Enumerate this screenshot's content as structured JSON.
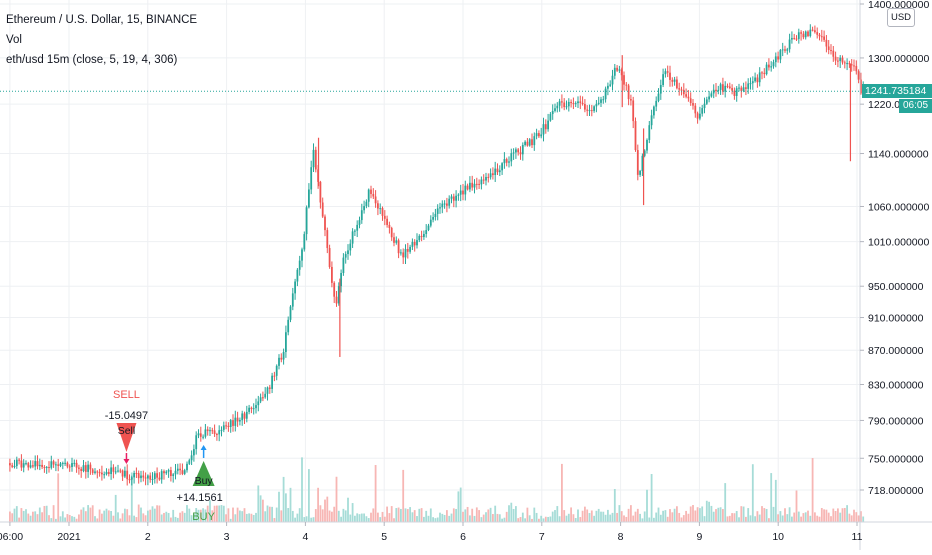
{
  "legend": {
    "symbol_line": "Ethereum / U.S. Dollar, 15, BINANCE",
    "volume_line": "Vol",
    "indicator_line": "eth/usd 15m (close, 5, 19, 4, 306)"
  },
  "currency_button": "USD",
  "price_badge": "1241.735184",
  "time_badge": "06:05",
  "colors": {
    "up": "#26a69a",
    "down": "#ef5350",
    "vol_up": "#a6dcd7",
    "vol_down": "#f7b6b4",
    "grid": "#eef0f3",
    "sell": "#ef5350",
    "buy": "#43a047",
    "price_line": "#26a69a"
  },
  "signals": {
    "sell": {
      "label": "SELL",
      "value": "-15.0497",
      "tag": "Sell"
    },
    "buy": {
      "label": "BUY",
      "value": "+14.1561",
      "tag": "Buy"
    }
  },
  "chart_data": {
    "type": "candlestick",
    "title": "Ethereum / U.S. Dollar, 15, BINANCE",
    "x_ticks": [
      "06:00",
      "2021",
      "2",
      "3",
      "4",
      "5",
      "6",
      "7",
      "8",
      "9",
      "10",
      "11"
    ],
    "y_ticks": [
      "1400.000000",
      "1300.000000",
      "1220.000000",
      "1140.000000",
      "1060.000000",
      "1010.000000",
      "950.000000",
      "910.000000",
      "870.000000",
      "830.000000",
      "790.000000",
      "750.000000",
      "718.000000"
    ],
    "y_scale": "log",
    "ylim": [
      700,
      1410
    ],
    "last_price": 1241.735184,
    "close_path": [
      {
        "x": "2020-12-31 06:00",
        "y": 745
      },
      {
        "x": "2021-01-01 00:00",
        "y": 742
      },
      {
        "x": "2021-01-01 12:00",
        "y": 737
      },
      {
        "x": "2021-01-02 00:00",
        "y": 730
      },
      {
        "x": "2021-01-02 12:00",
        "y": 738
      },
      {
        "x": "2021-01-02 16:00",
        "y": 775
      },
      {
        "x": "2021-01-02 20:00",
        "y": 778
      },
      {
        "x": "2021-01-03 00:00",
        "y": 782
      },
      {
        "x": "2021-01-03 08:00",
        "y": 800
      },
      {
        "x": "2021-01-03 14:00",
        "y": 830
      },
      {
        "x": "2021-01-03 18:00",
        "y": 870
      },
      {
        "x": "2021-01-03 20:00",
        "y": 920
      },
      {
        "x": "2021-01-03 22:00",
        "y": 960
      },
      {
        "x": "2021-01-04 00:00",
        "y": 1010
      },
      {
        "x": "2021-01-04 03:00",
        "y": 1150
      },
      {
        "x": "2021-01-04 05:00",
        "y": 1080
      },
      {
        "x": "2021-01-04 10:00",
        "y": 920
      },
      {
        "x": "2021-01-04 12:00",
        "y": 980
      },
      {
        "x": "2021-01-04 16:00",
        "y": 1030
      },
      {
        "x": "2021-01-04 20:00",
        "y": 1080
      },
      {
        "x": "2021-01-05 00:00",
        "y": 1050
      },
      {
        "x": "2021-01-05 06:00",
        "y": 990
      },
      {
        "x": "2021-01-05 12:00",
        "y": 1020
      },
      {
        "x": "2021-01-05 18:00",
        "y": 1060
      },
      {
        "x": "2021-01-06 00:00",
        "y": 1080
      },
      {
        "x": "2021-01-06 12:00",
        "y": 1120
      },
      {
        "x": "2021-01-07 00:00",
        "y": 1170
      },
      {
        "x": "2021-01-07 06:00",
        "y": 1220
      },
      {
        "x": "2021-01-07 18:00",
        "y": 1215
      },
      {
        "x": "2021-01-08 00:00",
        "y": 1290
      },
      {
        "x": "2021-01-08 04:00",
        "y": 1220
      },
      {
        "x": "2021-01-08 06:00",
        "y": 1100
      },
      {
        "x": "2021-01-08 10:00",
        "y": 1200
      },
      {
        "x": "2021-01-08 14:00",
        "y": 1280
      },
      {
        "x": "2021-01-08 20:00",
        "y": 1240
      },
      {
        "x": "2021-01-09 00:00",
        "y": 1200
      },
      {
        "x": "2021-01-09 06:00",
        "y": 1250
      },
      {
        "x": "2021-01-09 12:00",
        "y": 1240
      },
      {
        "x": "2021-01-09 18:00",
        "y": 1260
      },
      {
        "x": "2021-01-10 00:00",
        "y": 1300
      },
      {
        "x": "2021-01-10 06:00",
        "y": 1340
      },
      {
        "x": "2021-01-10 12:00",
        "y": 1350
      },
      {
        "x": "2021-01-10 18:00",
        "y": 1300
      },
      {
        "x": "2021-01-11 00:00",
        "y": 1280
      },
      {
        "x": "2021-01-11 02:00",
        "y": 1241.7
      }
    ],
    "series": [
      {
        "name": "Vol",
        "kind": "volume"
      },
      {
        "name": "eth/usd 15m (close, 5, 19, 4, 306)",
        "kind": "signals"
      }
    ]
  }
}
